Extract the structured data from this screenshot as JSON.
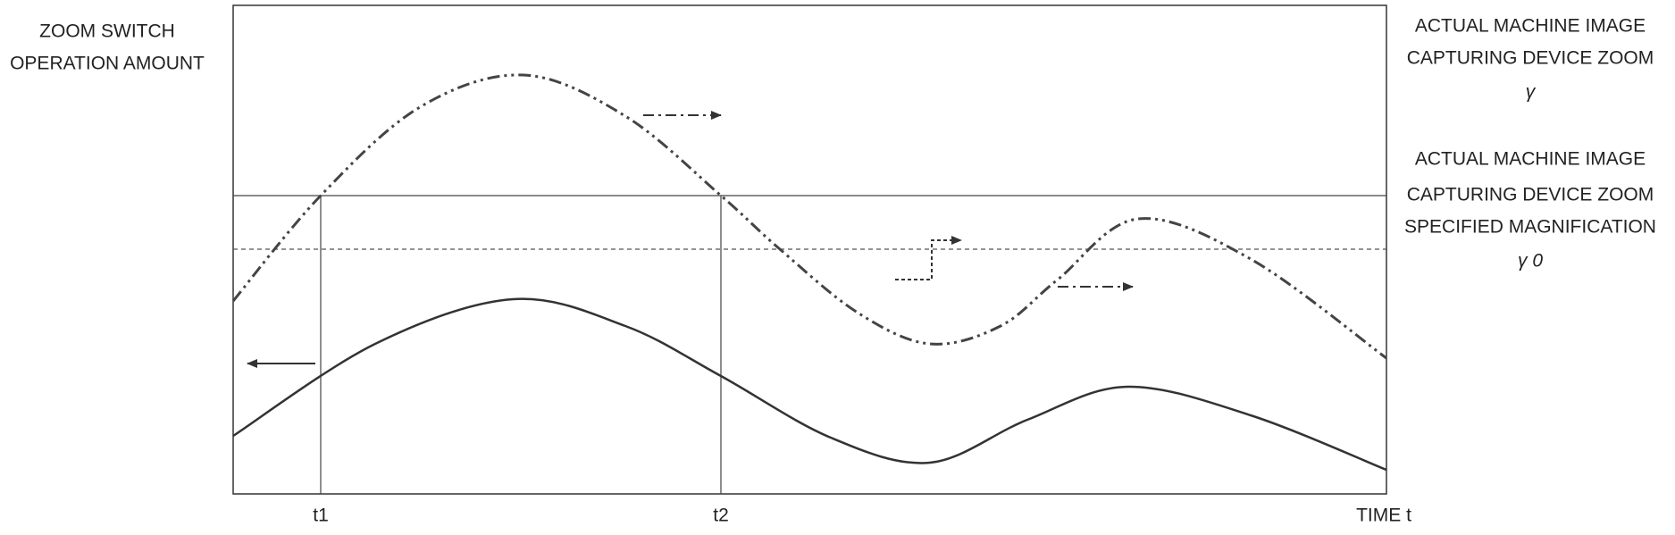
{
  "left_label": [
    "ZOOM SWITCH",
    "OPERATION AMOUNT"
  ],
  "right_labels": [
    {
      "lines": [
        "ACTUAL MACHINE IMAGE",
        "CAPTURING DEVICE ZOOM",
        "γ"
      ]
    },
    {
      "lines": [
        "ACTUAL MACHINE IMAGE",
        "CAPTURING DEVICE ZOOM",
        "SPECIFIED MAGNIFICATION",
        "γ 0"
      ]
    }
  ],
  "x_ticks": [
    "t1",
    "t2"
  ],
  "x_axis_label": "TIME t"
}
